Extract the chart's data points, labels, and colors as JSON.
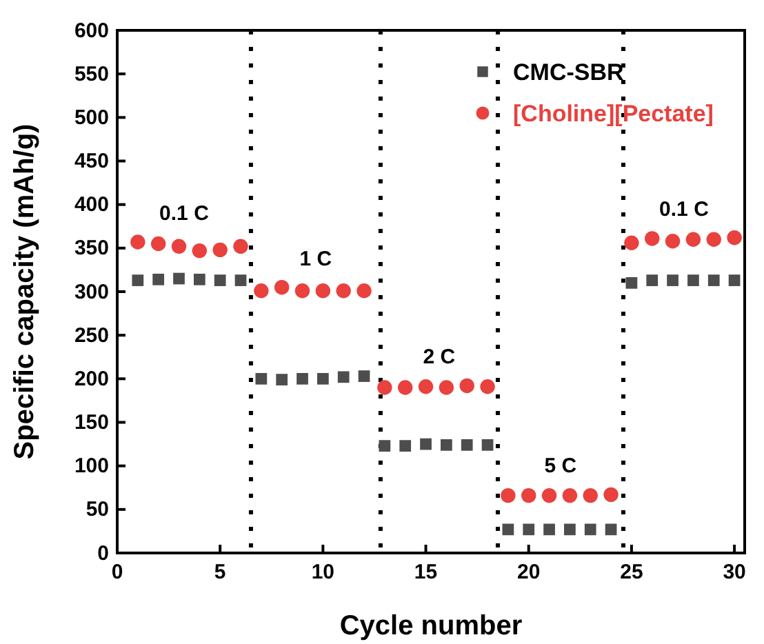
{
  "chart_data": {
    "type": "scatter",
    "xlabel": "Cycle number",
    "ylabel": "Specific capacity (mAh/g)",
    "x": [
      1,
      2,
      3,
      4,
      5,
      6,
      7,
      8,
      9,
      10,
      11,
      12,
      13,
      14,
      15,
      16,
      17,
      18,
      19,
      20,
      21,
      22,
      23,
      24,
      25,
      26,
      27,
      28,
      29,
      30
    ],
    "series": [
      {
        "name": "CMC-SBR",
        "color": "#4d4d4d",
        "marker": "square",
        "values": [
          313,
          314,
          315,
          314,
          313,
          313,
          200,
          199,
          200,
          200,
          202,
          203,
          123,
          123,
          125,
          124,
          124,
          124,
          27,
          27,
          27,
          27,
          27,
          27,
          310,
          313,
          313,
          313,
          313,
          313
        ]
      },
      {
        "name": "[Choline][Pectate]",
        "color": "#e8413e",
        "marker": "circle",
        "values": [
          357,
          355,
          352,
          347,
          348,
          352,
          301,
          305,
          301,
          301,
          301,
          301,
          190,
          190,
          191,
          190,
          192,
          191,
          66,
          66,
          66,
          66,
          66,
          67,
          356,
          361,
          358,
          360,
          360,
          362
        ]
      }
    ],
    "xlim": [
      0,
      30.5
    ],
    "xticks": [
      0,
      5,
      10,
      15,
      20,
      25,
      30
    ],
    "ylim": [
      0,
      600
    ],
    "yticks": [
      0,
      50,
      100,
      150,
      200,
      250,
      300,
      350,
      400,
      450,
      500,
      550,
      600
    ],
    "ref_lines": [
      {
        "axis": "x",
        "value": 6.5,
        "color": "#000000",
        "line_style": "dotted"
      },
      {
        "axis": "x",
        "value": 12.8,
        "color": "#000000",
        "line_style": "dotted"
      },
      {
        "axis": "x",
        "value": 18.5,
        "color": "#000000",
        "line_style": "dotted"
      },
      {
        "axis": "x",
        "value": 24.6,
        "color": "#000000",
        "line_style": "dotted"
      }
    ],
    "annotations": [
      "0.1 C",
      "1 C",
      "2 C",
      "5 C",
      "0.1 C"
    ],
    "legend": "top right",
    "grid": false
  }
}
